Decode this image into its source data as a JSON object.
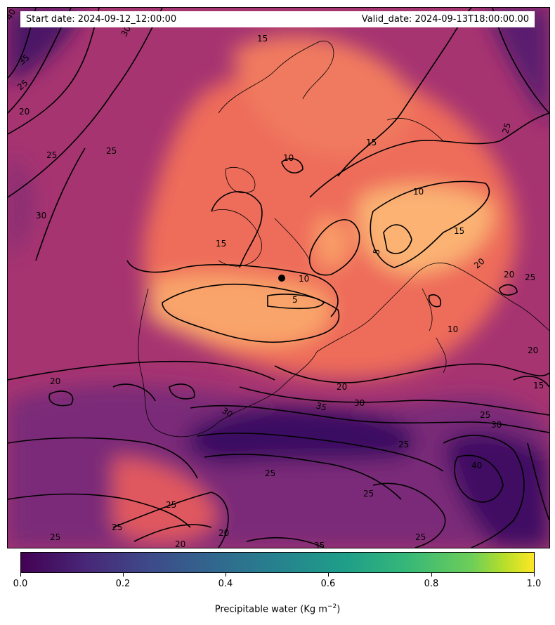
{
  "header": {
    "start_date": "Start date: 2024-09-12_12:00:00",
    "valid_date": "Valid_date: 2024-09-13T18:00:00.00"
  },
  "colorbar": {
    "ticks": [
      "0.0",
      "0.2",
      "0.4",
      "0.6",
      "0.8",
      "1.0"
    ],
    "title_main": "Precipitable water (Kg m",
    "title_exp": "−2",
    "title_close": ")",
    "colormap": "viridis"
  },
  "map": {
    "colormap": "magma",
    "contour_labels": [
      "40",
      "35",
      "30",
      "25",
      "20",
      "15",
      "10",
      "5",
      "10",
      "15",
      "20",
      "25",
      "30",
      "35",
      "40"
    ]
  },
  "colors": {
    "viridis": [
      "#440154",
      "#3b528b",
      "#21918c",
      "#5ec962",
      "#fde725"
    ],
    "field_dark": "#3a1062",
    "field_mid": "#b8386f",
    "field_warm": "#ef6f5a",
    "field_light": "#fca86c"
  }
}
